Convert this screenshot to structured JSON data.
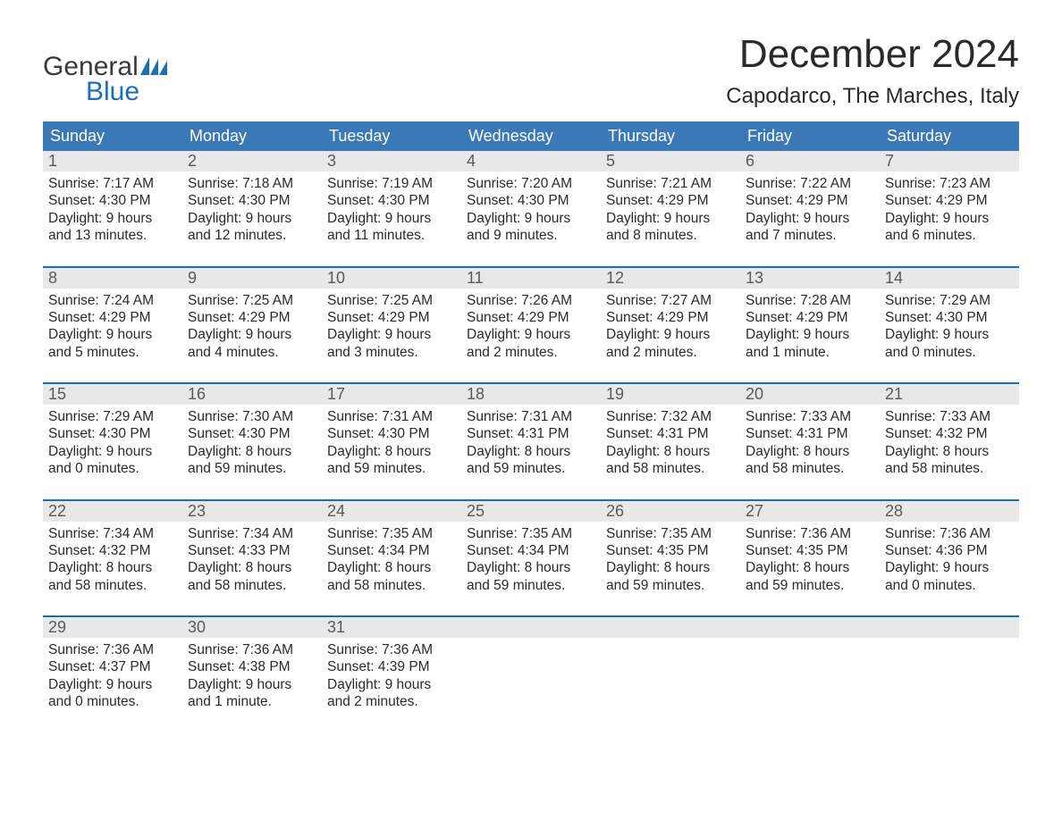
{
  "logo": {
    "word1": "General",
    "word2": "Blue"
  },
  "title": "December 2024",
  "location": "Capodarco, The Marches, Italy",
  "colors": {
    "header_blue": "#3a78b8",
    "accent_blue": "#1a6fb5",
    "grey_bg": "#e8e8e8",
    "text_dark": "#2a2a2a",
    "text_grey": "#595959"
  },
  "dow": [
    "Sunday",
    "Monday",
    "Tuesday",
    "Wednesday",
    "Thursday",
    "Friday",
    "Saturday"
  ],
  "labels": {
    "sunrise": "Sunrise:",
    "sunset": "Sunset:",
    "daylight": "Daylight:"
  },
  "weeks": [
    [
      {
        "n": "1",
        "sunrise": "7:17 AM",
        "sunset": "4:30 PM",
        "day1": "9 hours",
        "day2": "and 13 minutes."
      },
      {
        "n": "2",
        "sunrise": "7:18 AM",
        "sunset": "4:30 PM",
        "day1": "9 hours",
        "day2": "and 12 minutes."
      },
      {
        "n": "3",
        "sunrise": "7:19 AM",
        "sunset": "4:30 PM",
        "day1": "9 hours",
        "day2": "and 11 minutes."
      },
      {
        "n": "4",
        "sunrise": "7:20 AM",
        "sunset": "4:30 PM",
        "day1": "9 hours",
        "day2": "and 9 minutes."
      },
      {
        "n": "5",
        "sunrise": "7:21 AM",
        "sunset": "4:29 PM",
        "day1": "9 hours",
        "day2": "and 8 minutes."
      },
      {
        "n": "6",
        "sunrise": "7:22 AM",
        "sunset": "4:29 PM",
        "day1": "9 hours",
        "day2": "and 7 minutes."
      },
      {
        "n": "7",
        "sunrise": "7:23 AM",
        "sunset": "4:29 PM",
        "day1": "9 hours",
        "day2": "and 6 minutes."
      }
    ],
    [
      {
        "n": "8",
        "sunrise": "7:24 AM",
        "sunset": "4:29 PM",
        "day1": "9 hours",
        "day2": "and 5 minutes."
      },
      {
        "n": "9",
        "sunrise": "7:25 AM",
        "sunset": "4:29 PM",
        "day1": "9 hours",
        "day2": "and 4 minutes."
      },
      {
        "n": "10",
        "sunrise": "7:25 AM",
        "sunset": "4:29 PM",
        "day1": "9 hours",
        "day2": "and 3 minutes."
      },
      {
        "n": "11",
        "sunrise": "7:26 AM",
        "sunset": "4:29 PM",
        "day1": "9 hours",
        "day2": "and 2 minutes."
      },
      {
        "n": "12",
        "sunrise": "7:27 AM",
        "sunset": "4:29 PM",
        "day1": "9 hours",
        "day2": "and 2 minutes."
      },
      {
        "n": "13",
        "sunrise": "7:28 AM",
        "sunset": "4:29 PM",
        "day1": "9 hours",
        "day2": "and 1 minute."
      },
      {
        "n": "14",
        "sunrise": "7:29 AM",
        "sunset": "4:30 PM",
        "day1": "9 hours",
        "day2": "and 0 minutes."
      }
    ],
    [
      {
        "n": "15",
        "sunrise": "7:29 AM",
        "sunset": "4:30 PM",
        "day1": "9 hours",
        "day2": "and 0 minutes."
      },
      {
        "n": "16",
        "sunrise": "7:30 AM",
        "sunset": "4:30 PM",
        "day1": "8 hours",
        "day2": "and 59 minutes."
      },
      {
        "n": "17",
        "sunrise": "7:31 AM",
        "sunset": "4:30 PM",
        "day1": "8 hours",
        "day2": "and 59 minutes."
      },
      {
        "n": "18",
        "sunrise": "7:31 AM",
        "sunset": "4:31 PM",
        "day1": "8 hours",
        "day2": "and 59 minutes."
      },
      {
        "n": "19",
        "sunrise": "7:32 AM",
        "sunset": "4:31 PM",
        "day1": "8 hours",
        "day2": "and 58 minutes."
      },
      {
        "n": "20",
        "sunrise": "7:33 AM",
        "sunset": "4:31 PM",
        "day1": "8 hours",
        "day2": "and 58 minutes."
      },
      {
        "n": "21",
        "sunrise": "7:33 AM",
        "sunset": "4:32 PM",
        "day1": "8 hours",
        "day2": "and 58 minutes."
      }
    ],
    [
      {
        "n": "22",
        "sunrise": "7:34 AM",
        "sunset": "4:32 PM",
        "day1": "8 hours",
        "day2": "and 58 minutes."
      },
      {
        "n": "23",
        "sunrise": "7:34 AM",
        "sunset": "4:33 PM",
        "day1": "8 hours",
        "day2": "and 58 minutes."
      },
      {
        "n": "24",
        "sunrise": "7:35 AM",
        "sunset": "4:34 PM",
        "day1": "8 hours",
        "day2": "and 58 minutes."
      },
      {
        "n": "25",
        "sunrise": "7:35 AM",
        "sunset": "4:34 PM",
        "day1": "8 hours",
        "day2": "and 59 minutes."
      },
      {
        "n": "26",
        "sunrise": "7:35 AM",
        "sunset": "4:35 PM",
        "day1": "8 hours",
        "day2": "and 59 minutes."
      },
      {
        "n": "27",
        "sunrise": "7:36 AM",
        "sunset": "4:35 PM",
        "day1": "8 hours",
        "day2": "and 59 minutes."
      },
      {
        "n": "28",
        "sunrise": "7:36 AM",
        "sunset": "4:36 PM",
        "day1": "9 hours",
        "day2": "and 0 minutes."
      }
    ],
    [
      {
        "n": "29",
        "sunrise": "7:36 AM",
        "sunset": "4:37 PM",
        "day1": "9 hours",
        "day2": "and 0 minutes."
      },
      {
        "n": "30",
        "sunrise": "7:36 AM",
        "sunset": "4:38 PM",
        "day1": "9 hours",
        "day2": "and 1 minute."
      },
      {
        "n": "31",
        "sunrise": "7:36 AM",
        "sunset": "4:39 PM",
        "day1": "9 hours",
        "day2": "and 2 minutes."
      },
      null,
      null,
      null,
      null
    ]
  ]
}
